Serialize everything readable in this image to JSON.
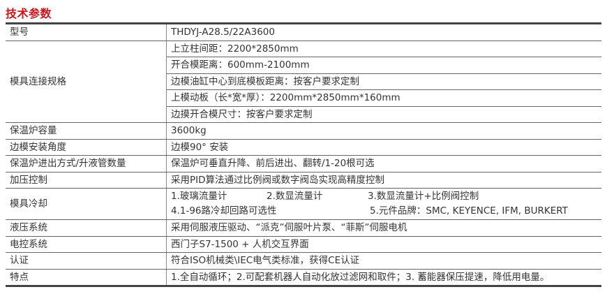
{
  "title": "技术参数",
  "colors": {
    "title": "#c8161d",
    "rule": "#444444"
  },
  "rows": {
    "model": {
      "label": "型号",
      "value": "THDYJ-A28.5/22A3600"
    },
    "mold_spec": {
      "label": "模具连接规格",
      "values": [
        "上立柱间距：2200*2850mm",
        "开合模距离：600mm-2100mm",
        "边模油缸中心到底模板距离：按客户要求定制",
        "上模动板（长*宽*厚）：2200mm*2850mm*160mm",
        "边摸开合模尺寸：按客户要求定制"
      ]
    },
    "furnace_capacity": {
      "label": "保温炉容量",
      "value": "3600kg"
    },
    "side_mold_angle": {
      "label": "边模安装角度",
      "value": "边模90°  安装"
    },
    "furnace_motion": {
      "label": "保温炉进出方式/升液管数量",
      "value": "保温炉可垂直升降、前后进出、翻转/1-20根可选"
    },
    "pressure_control": {
      "label": "加压控制",
      "value": "采用PID算法通过比例阀或数字阀岛实现高精度控制"
    },
    "mold_cooling": {
      "label": "模具冷却",
      "line1": [
        "1.玻璃流量计",
        "2.数显流量计",
        "3.数显流量计+比例阀控制"
      ],
      "line2": [
        "4.1-96路冷却回路可选性",
        "5.元件品牌：SMC, KEYENCE, IFM, BURKERT"
      ]
    },
    "hydraulic": {
      "label": "液压系统",
      "value": "采用伺服液压驱动、“派克”伺服叶片泵、“菲斯”伺服电机"
    },
    "electric": {
      "label": "电控系统",
      "value": "西门子S7-1500 + 人机交互界面"
    },
    "certification": {
      "label": "认证",
      "value": "符合ISO机械类\\IEC电气类标准，获得CE认证"
    },
    "features": {
      "label": "特点",
      "value": "1.全自动循环；2.可配套机器人自动化放过滤网和取件；3. 蓄能器保压提速，降低用电量。"
    }
  }
}
